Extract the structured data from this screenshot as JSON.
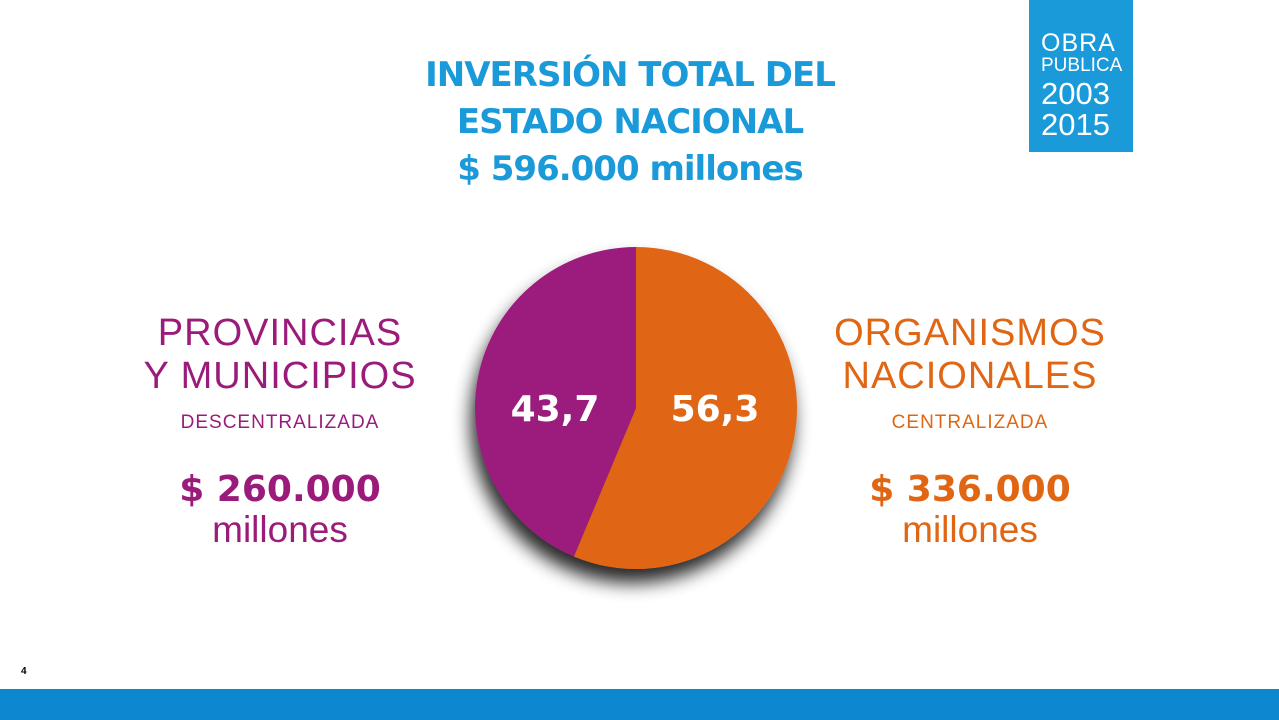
{
  "colors": {
    "blue": "#1a9ad9",
    "purple": "#9b1b7b",
    "orange": "#e06614",
    "footer": "#0b88cf"
  },
  "title": {
    "line1": "INVERSIÓN TOTAL DEL",
    "line2": "ESTADO NACIONAL",
    "line3": "$ 596.000 millones"
  },
  "badge": {
    "line1": "OBRA",
    "line2": "PUBLICA",
    "line3": "2003",
    "line4": "2015"
  },
  "left_panel": {
    "name_line1": "PROVINCIAS",
    "name_line2": "Y MUNICIPIOS",
    "subtitle": "DESCENTRALIZADA",
    "amount": "$ 260.000",
    "unit": "millones"
  },
  "right_panel": {
    "name_line1": "ORGANISMOS",
    "name_line2": "NACIONALES",
    "subtitle": "CENTRALIZADA",
    "amount": "$ 336.000",
    "unit": "millones"
  },
  "chart_data": {
    "type": "pie",
    "slices": [
      {
        "name": "PROVINCIAS Y MUNICIPIOS",
        "value": 43.7,
        "label": "43,7",
        "color": "#9b1b7b"
      },
      {
        "name": "ORGANISMOS NACIONALES",
        "value": 56.3,
        "label": "56,3",
        "color": "#e06614"
      }
    ]
  },
  "page": {
    "number": "4"
  }
}
